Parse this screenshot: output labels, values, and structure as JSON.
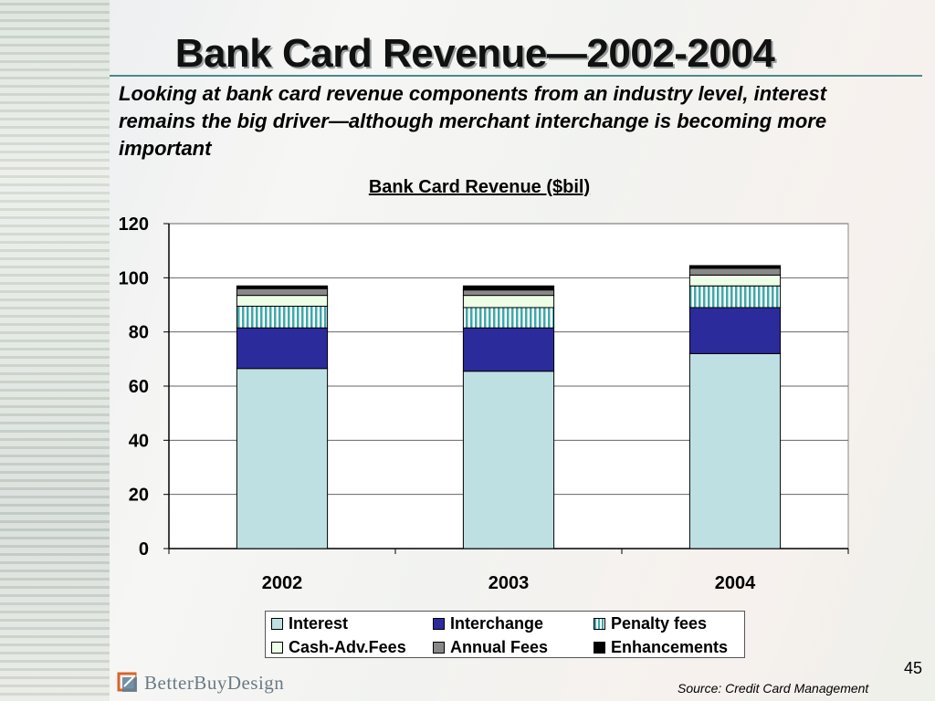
{
  "slide": {
    "title": "Bank Card Revenue—2002-2004",
    "subtitle": "Looking at bank card revenue components from an industry level, interest remains the big driver—although merchant interchange is becoming more important",
    "page_number": "45",
    "source": "Source: Credit Card Management",
    "logo_text": "BetterBuyDesign"
  },
  "chart_data": {
    "type": "bar",
    "stacked": true,
    "title": "Bank Card Revenue ($bil)",
    "xlabel": "",
    "ylabel": "",
    "categories": [
      "2002",
      "2003",
      "2004"
    ],
    "ylim": [
      0,
      120
    ],
    "yticks": [
      "0",
      "20",
      "40",
      "60",
      "80",
      "100",
      "120"
    ],
    "grid": true,
    "legend_position": "bottom",
    "series": [
      {
        "name": "Interest",
        "values": [
          66.5,
          65.5,
          72
        ],
        "color": "#bfe0e2",
        "pattern": "solid"
      },
      {
        "name": "Interchange",
        "values": [
          15,
          16,
          17
        ],
        "color": "#2b2b9c",
        "pattern": "solid"
      },
      {
        "name": "Penalty fees",
        "values": [
          8,
          7.5,
          8
        ],
        "color": "#8fd0d0",
        "pattern": "vstripe"
      },
      {
        "name": "Cash-Adv.Fees",
        "values": [
          4,
          4.5,
          4
        ],
        "color": "#eeffe8",
        "pattern": "solid"
      },
      {
        "name": "Annual Fees",
        "values": [
          2.5,
          2,
          2.5
        ],
        "color": "#888888",
        "pattern": "solid"
      },
      {
        "name": "Enhancements",
        "values": [
          1,
          1.5,
          1
        ],
        "color": "#000000",
        "pattern": "solid"
      }
    ]
  }
}
